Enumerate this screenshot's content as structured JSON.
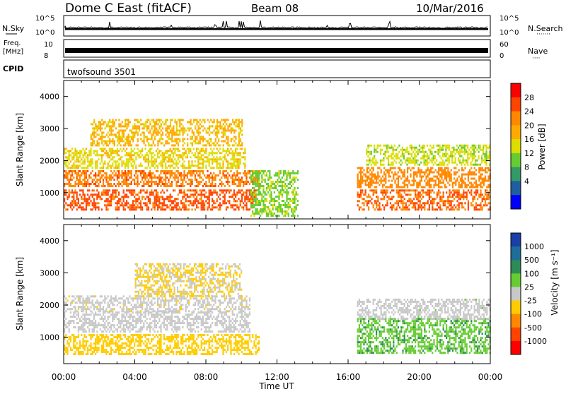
{
  "header": {
    "title": "Dome C East (fitACF)",
    "beam": "Beam 08",
    "date": "10/Mar/2016"
  },
  "strip_labels": {
    "nsky": "N.Sky",
    "nsearch": "N.Search",
    "nsearch_dots": "·······",
    "freq": "Freq.",
    "freq_unit": "[MHz]",
    "nave": "Nave",
    "nave_dots": "····",
    "cpid": "CPID",
    "cpid_value": "twofsound 3501",
    "nsky_ticks": [
      "10^5",
      "10^0"
    ],
    "nsearch_ticks": [
      "10^5",
      "10^0"
    ],
    "freq_ticks": [
      "10",
      "8"
    ],
    "nave_ticks": [
      "60",
      "0"
    ]
  },
  "axes": {
    "ylabel": "Slant Range [km]",
    "xlabel": "Time UT",
    "x_ticks": [
      "00:00",
      "04:00",
      "08:00",
      "12:00",
      "16:00",
      "20:00",
      "00:00"
    ],
    "y_ticks": [
      "1000",
      "2000",
      "3000",
      "4000"
    ]
  },
  "colorbars": {
    "power": {
      "label": "Power [dB]",
      "ticks": [
        "28",
        "24",
        "20",
        "16",
        "12",
        "8",
        "4"
      ],
      "colors": [
        "#ff0000",
        "#ff4400",
        "#ff8800",
        "#ffaa00",
        "#dddd00",
        "#66cc33",
        "#339966",
        "#1f5fa0",
        "#0000ff"
      ]
    },
    "velocity": {
      "label": "Velocity [m s⁻¹]",
      "ticks": [
        "1000",
        "500",
        "100",
        "25",
        "-25",
        "-100",
        "-500",
        "-1000"
      ],
      "colors": [
        "#1a3fa8",
        "#1f6e99",
        "#2e8b57",
        "#66cc33",
        "#c8c8c8",
        "#ffcc00",
        "#ff8800",
        "#ff4400",
        "#ff0000"
      ]
    }
  },
  "chart_data": [
    {
      "type": "heatmap",
      "name": "Power",
      "x_range_hours": [
        0,
        24
      ],
      "y_range_km": [
        180,
        4500
      ],
      "cbar_range": [
        0,
        32
      ],
      "bands": [
        {
          "t0": 0.0,
          "t1": 10.8,
          "r0": 500,
          "r1": 1100,
          "value": 27
        },
        {
          "t0": 0.0,
          "t1": 11.0,
          "r0": 1200,
          "r1": 1700,
          "value": 25
        },
        {
          "t0": 0.0,
          "t1": 10.2,
          "r0": 1800,
          "r1": 2400,
          "value": 17
        },
        {
          "t0": 1.5,
          "t1": 10.0,
          "r0": 2500,
          "r1": 3300,
          "value": 19
        },
        {
          "t0": 10.5,
          "t1": 13.2,
          "r0": 300,
          "r1": 1700,
          "value": 13
        },
        {
          "t0": 16.5,
          "t1": 24.0,
          "r0": 500,
          "r1": 1100,
          "value": 26
        },
        {
          "t0": 16.5,
          "t1": 24.0,
          "r0": 1200,
          "r1": 1800,
          "value": 24
        },
        {
          "t0": 17.0,
          "t1": 24.0,
          "r0": 1900,
          "r1": 2500,
          "value": 15
        }
      ]
    },
    {
      "type": "heatmap",
      "name": "Velocity",
      "x_range_hours": [
        0,
        24
      ],
      "y_range_km": [
        180,
        4500
      ],
      "cbar_range": [
        -1000,
        1000
      ],
      "bands": [
        {
          "t0": 0.0,
          "t1": 11.0,
          "r0": 500,
          "r1": 1100,
          "value": -250
        },
        {
          "t0": 0.0,
          "t1": 10.5,
          "r0": 1200,
          "r1": 1800,
          "value": 0
        },
        {
          "t0": 0.0,
          "t1": 10.5,
          "r0": 1800,
          "r1": 2300,
          "value": -20
        },
        {
          "t0": 4.0,
          "t1": 10.0,
          "r0": 2300,
          "r1": 3300,
          "value": -150
        },
        {
          "t0": 16.5,
          "t1": 24.0,
          "r0": 500,
          "r1": 1600,
          "value": 300
        },
        {
          "t0": 16.5,
          "t1": 24.0,
          "r0": 1600,
          "r1": 2200,
          "value": 10
        }
      ]
    }
  ]
}
